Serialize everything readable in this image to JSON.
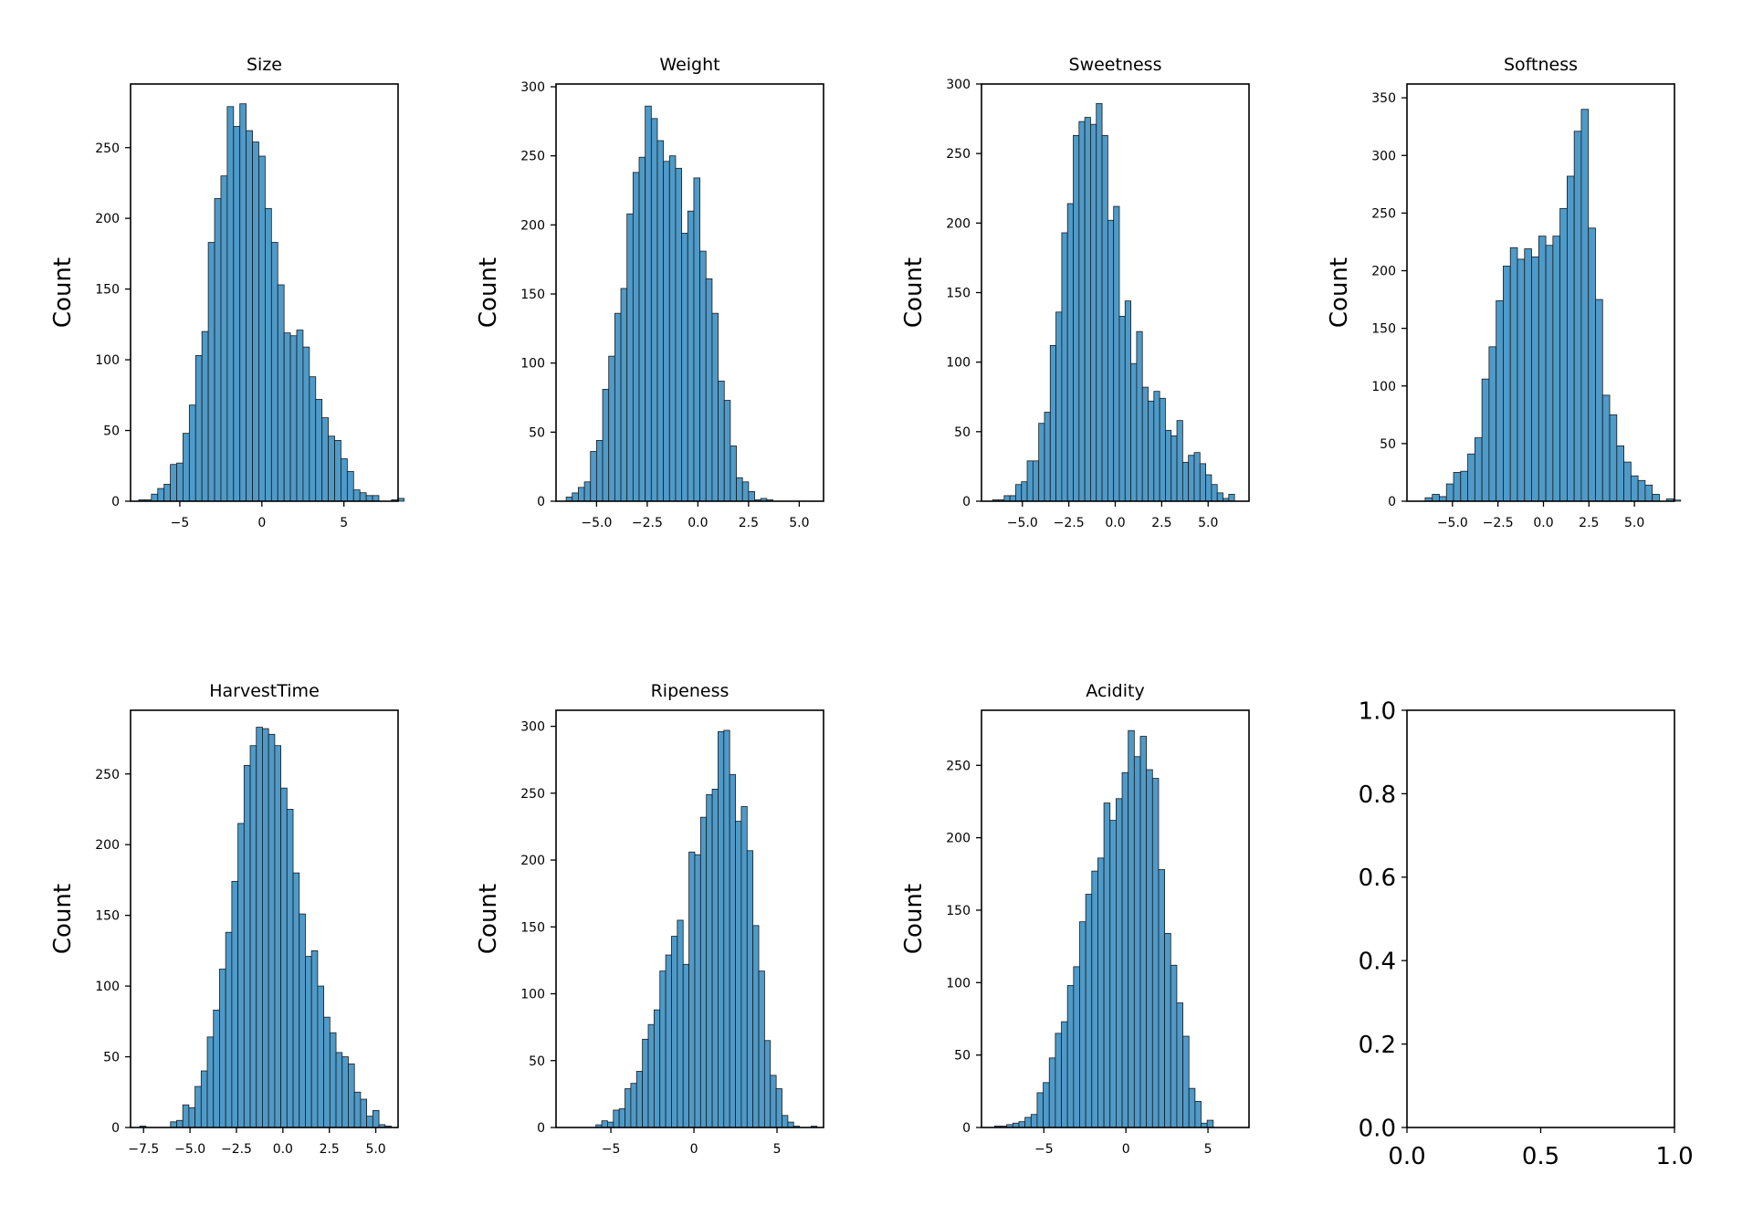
{
  "figure": {
    "background": "#ffffff",
    "bar_fill": "#4e9ac9",
    "bar_edge": "#1a1a1a"
  },
  "chart_data": [
    {
      "type": "bar",
      "title": "Size",
      "ylabel": "Count",
      "bin_start": -7.5,
      "bin_width": 0.385,
      "values": [
        1,
        1,
        5,
        9,
        12,
        26,
        27,
        48,
        68,
        103,
        120,
        183,
        214,
        230,
        279,
        265,
        281,
        262,
        254,
        244,
        207,
        183,
        153,
        119,
        117,
        121,
        109,
        88,
        72,
        59,
        46,
        43,
        30,
        21,
        8,
        6,
        4,
        4,
        0,
        0,
        1,
        2
      ],
      "xlim": [
        -8.0,
        8.3
      ],
      "ylim": [
        0,
        295
      ],
      "xticks": [
        -5,
        0,
        5
      ],
      "xtick_labels": [
        "−5",
        "0",
        "5"
      ],
      "yticks": [
        0,
        50,
        100,
        150,
        200,
        250
      ],
      "ytick_labels": [
        "0",
        "50",
        "100",
        "150",
        "200",
        "250"
      ]
    },
    {
      "type": "bar",
      "title": "Weight",
      "ylabel": "Count",
      "bin_start": -6.5,
      "bin_width": 0.3,
      "values": [
        3,
        6,
        10,
        14,
        36,
        44,
        81,
        105,
        136,
        154,
        208,
        238,
        249,
        286,
        277,
        261,
        246,
        250,
        241,
        194,
        210,
        234,
        181,
        161,
        136,
        87,
        73,
        40,
        17,
        14,
        7,
        1,
        2,
        1
      ],
      "xlim": [
        -7.0,
        6.2
      ],
      "ylim": [
        0,
        302
      ],
      "xticks": [
        -5,
        -2.5,
        0,
        2.5,
        5
      ],
      "xtick_labels": [
        "−5.0",
        "−2.5",
        "0.0",
        "2.5",
        "5.0"
      ],
      "yticks": [
        0,
        50,
        100,
        150,
        200,
        250,
        300
      ],
      "ytick_labels": [
        "0",
        "50",
        "100",
        "150",
        "200",
        "250",
        "300"
      ]
    },
    {
      "type": "bar",
      "title": "Sweetness",
      "ylabel": "Count",
      "bin_start": -6.6,
      "bin_width": 0.31,
      "values": [
        1,
        1,
        4,
        4,
        12,
        14,
        29,
        29,
        56,
        64,
        112,
        136,
        193,
        214,
        263,
        273,
        276,
        271,
        286,
        263,
        202,
        212,
        133,
        144,
        99,
        122,
        82,
        72,
        79,
        74,
        51,
        47,
        58,
        28,
        33,
        35,
        27,
        19,
        12,
        6,
        2,
        5
      ],
      "xlim": [
        -7.2,
        7.2
      ],
      "ylim": [
        0,
        300
      ],
      "xticks": [
        -5,
        -2.5,
        0,
        2.5,
        5
      ],
      "xtick_labels": [
        "−5.0",
        "−2.5",
        "0.0",
        "2.5",
        "5.0"
      ],
      "yticks": [
        0,
        50,
        100,
        150,
        200,
        250,
        300
      ],
      "ytick_labels": [
        "0",
        "50",
        "100",
        "150",
        "200",
        "250",
        "300"
      ]
    },
    {
      "type": "bar",
      "title": "Softness",
      "ylabel": "Count",
      "bin_start": -6.5,
      "bin_width": 0.39,
      "values": [
        3,
        6,
        4,
        15,
        25,
        26,
        41,
        55,
        106,
        134,
        174,
        204,
        220,
        210,
        219,
        212,
        230,
        222,
        230,
        254,
        282,
        321,
        340,
        237,
        175,
        92,
        75,
        48,
        34,
        22,
        18,
        14,
        6,
        0,
        2,
        1
      ],
      "xlim": [
        -7.5,
        7.2
      ],
      "ylim": [
        0,
        362
      ],
      "xticks": [
        -5,
        -2.5,
        0,
        2.5,
        5
      ],
      "xtick_labels": [
        "−5.0",
        "−2.5",
        "0.0",
        "2.5",
        "5.0"
      ],
      "yticks": [
        0,
        50,
        100,
        150,
        200,
        250,
        300,
        350
      ],
      "ytick_labels": [
        "0",
        "50",
        "100",
        "150",
        "200",
        "250",
        "300",
        "350"
      ]
    },
    {
      "type": "bar",
      "title": "HarvestTime",
      "ylabel": "Count",
      "bin_start": -7.7,
      "bin_width": 0.33,
      "values": [
        1,
        0,
        0,
        0,
        0,
        4,
        5,
        16,
        14,
        29,
        40,
        64,
        83,
        112,
        138,
        174,
        215,
        256,
        270,
        283,
        282,
        278,
        270,
        240,
        225,
        180,
        151,
        121,
        125,
        100,
        78,
        67,
        53,
        50,
        45,
        25,
        20,
        8,
        12,
        2,
        1
      ],
      "xlim": [
        -8.2,
        6.2
      ],
      "ylim": [
        0,
        295
      ],
      "xticks": [
        -7.5,
        -5,
        -2.5,
        0,
        2.5,
        5
      ],
      "xtick_labels": [
        "−7.5",
        "−5.0",
        "−2.5",
        "0.0",
        "2.5",
        "5.0"
      ],
      "yticks": [
        0,
        50,
        100,
        150,
        200,
        250
      ],
      "ytick_labels": [
        "0",
        "50",
        "100",
        "150",
        "200",
        "250"
      ]
    },
    {
      "type": "bar",
      "title": "Ripeness",
      "ylabel": "Count",
      "bin_start": -5.9,
      "bin_width": 0.35,
      "values": [
        2,
        5,
        4,
        13,
        14,
        29,
        33,
        42,
        66,
        77,
        88,
        117,
        129,
        143,
        155,
        122,
        206,
        204,
        232,
        249,
        253,
        296,
        297,
        264,
        229,
        240,
        207,
        151,
        117,
        65,
        39,
        29,
        9,
        4,
        1,
        0,
        0,
        1
      ],
      "xlim": [
        -8.3,
        7.8
      ],
      "ylim": [
        0,
        312
      ],
      "xticks": [
        -5,
        0,
        5
      ],
      "xtick_labels": [
        "−5",
        "0",
        "5"
      ],
      "yticks": [
        0,
        50,
        100,
        150,
        200,
        250,
        300
      ],
      "ytick_labels": [
        "0",
        "50",
        "100",
        "150",
        "200",
        "250",
        "300"
      ]
    },
    {
      "type": "bar",
      "title": "Acidity",
      "ylabel": "Count",
      "bin_start": -8.0,
      "bin_width": 0.37,
      "values": [
        1,
        1,
        2,
        3,
        4,
        7,
        9,
        24,
        31,
        48,
        65,
        73,
        98,
        111,
        142,
        161,
        177,
        186,
        224,
        212,
        227,
        245,
        274,
        256,
        270,
        247,
        241,
        178,
        134,
        112,
        86,
        63,
        27,
        18,
        3,
        5
      ],
      "xlim": [
        -8.8,
        7.5
      ],
      "ylim": [
        0,
        288
      ],
      "xticks": [
        -5,
        0,
        5
      ],
      "xtick_labels": [
        "−5",
        "0",
        "5"
      ],
      "yticks": [
        0,
        50,
        100,
        150,
        200,
        250
      ],
      "ytick_labels": [
        "0",
        "50",
        "100",
        "150",
        "200",
        "250"
      ]
    },
    {
      "type": "table",
      "title": "",
      "ylabel": "",
      "values": [],
      "xlim": [
        0,
        1
      ],
      "ylim": [
        0,
        1
      ],
      "xticks": [
        0,
        0.5,
        1
      ],
      "xtick_labels": [
        "0.0",
        "0.5",
        "1.0"
      ],
      "yticks": [
        0,
        0.2,
        0.4,
        0.6,
        0.8,
        1.0
      ],
      "ytick_labels": [
        "0.0",
        "0.2",
        "0.4",
        "0.6",
        "0.8",
        "1.0"
      ]
    }
  ]
}
